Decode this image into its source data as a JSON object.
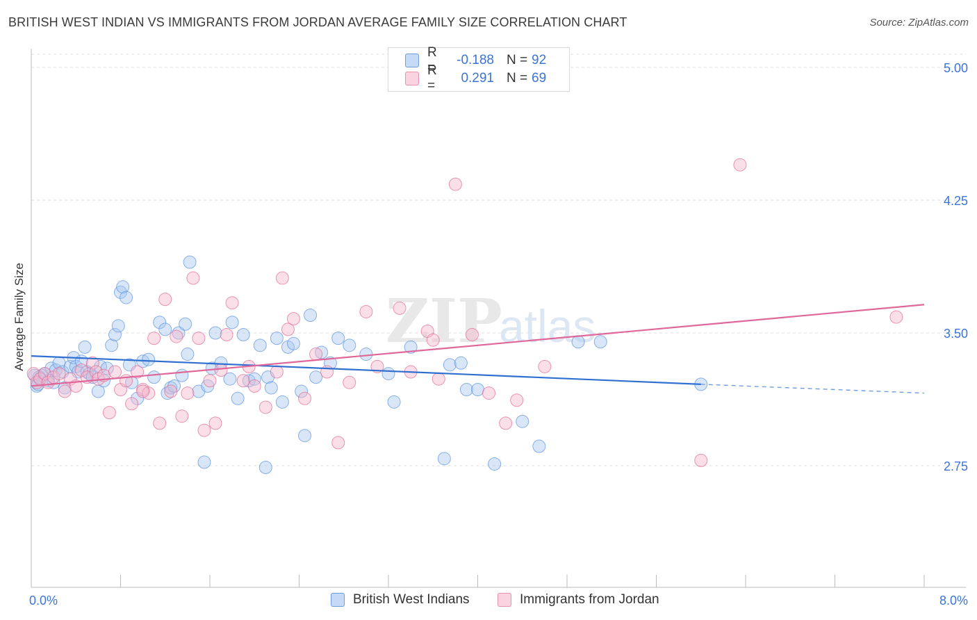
{
  "header": {
    "title": "BRITISH WEST INDIAN VS IMMIGRANTS FROM JORDAN AVERAGE FAMILY SIZE CORRELATION CHART",
    "source": "Source: ZipAtlas.com"
  },
  "legend_stats": [
    {
      "r_label": "R =",
      "r_value": "-0.188",
      "n_label": "N =",
      "n_value": "92",
      "color": "#a9c8f0"
    },
    {
      "r_label": "R =",
      "r_value": "0.291",
      "n_label": "N =",
      "n_value": "69",
      "color": "#f5b8cc"
    }
  ],
  "watermark": {
    "zip": "ZIP",
    "atlas": "atlas"
  },
  "chart_data": {
    "type": "scatter",
    "title": "BRITISH WEST INDIAN VS IMMIGRANTS FROM JORDAN AVERAGE FAMILY SIZE CORRELATION CHART",
    "xlabel": "",
    "ylabel": "Average Family Size",
    "xlim": [
      0.0,
      8.0
    ],
    "ylim": [
      2.0,
      5.0
    ],
    "x_tick_labels": [
      "0.0%",
      "8.0%"
    ],
    "y_ticks": [
      2.75,
      3.5,
      4.25,
      5.0
    ],
    "y_tick_labels": [
      "2.75",
      "3.50",
      "4.25",
      "5.00"
    ],
    "grid": true,
    "legend_position": "bottom",
    "series": [
      {
        "name": "British West Indians",
        "color": "#5b93e0",
        "fill": "#a9c8f0",
        "trend": {
          "x0": 0.0,
          "y0": 3.37,
          "x1": 6.0,
          "y1": 3.21,
          "dash_to_x": 8.0,
          "dash_to_y": 3.16
        },
        "points": [
          [
            0.05,
            3.2
          ],
          [
            0.08,
            3.24
          ],
          [
            0.1,
            3.26
          ],
          [
            0.12,
            3.27
          ],
          [
            0.15,
            3.23
          ],
          [
            0.18,
            3.3
          ],
          [
            0.2,
            3.22
          ],
          [
            0.22,
            3.29
          ],
          [
            0.25,
            3.33
          ],
          [
            0.28,
            3.28
          ],
          [
            0.3,
            3.19
          ],
          [
            0.35,
            3.31
          ],
          [
            0.38,
            3.36
          ],
          [
            0.4,
            3.31
          ],
          [
            0.42,
            3.28
          ],
          [
            0.45,
            3.34
          ],
          [
            0.48,
            3.42
          ],
          [
            0.5,
            3.28
          ],
          [
            0.52,
            3.27
          ],
          [
            0.55,
            3.25
          ],
          [
            0.6,
            3.17
          ],
          [
            0.62,
            3.31
          ],
          [
            0.65,
            3.23
          ],
          [
            0.68,
            3.3
          ],
          [
            0.72,
            3.43
          ],
          [
            0.75,
            3.49
          ],
          [
            0.78,
            3.54
          ],
          [
            0.8,
            3.73
          ],
          [
            0.82,
            3.76
          ],
          [
            0.85,
            3.7
          ],
          [
            0.88,
            3.32
          ],
          [
            0.9,
            3.22
          ],
          [
            0.95,
            3.13
          ],
          [
            1.0,
            3.34
          ],
          [
            1.05,
            3.35
          ],
          [
            1.1,
            3.25
          ],
          [
            1.15,
            3.56
          ],
          [
            1.2,
            3.52
          ],
          [
            1.22,
            3.16
          ],
          [
            1.25,
            3.19
          ],
          [
            1.28,
            3.2
          ],
          [
            1.32,
            3.5
          ],
          [
            1.35,
            3.26
          ],
          [
            1.38,
            3.55
          ],
          [
            1.4,
            3.38
          ],
          [
            1.42,
            3.9
          ],
          [
            1.5,
            3.17
          ],
          [
            1.55,
            2.77
          ],
          [
            1.58,
            3.2
          ],
          [
            1.62,
            3.3
          ],
          [
            1.65,
            3.5
          ],
          [
            1.7,
            3.33
          ],
          [
            1.78,
            3.24
          ],
          [
            1.8,
            3.56
          ],
          [
            1.85,
            3.13
          ],
          [
            1.9,
            3.49
          ],
          [
            1.95,
            3.23
          ],
          [
            2.0,
            3.24
          ],
          [
            2.05,
            3.43
          ],
          [
            2.1,
            2.74
          ],
          [
            2.12,
            3.25
          ],
          [
            2.15,
            3.19
          ],
          [
            2.2,
            3.47
          ],
          [
            2.25,
            3.11
          ],
          [
            2.3,
            3.42
          ],
          [
            2.35,
            3.44
          ],
          [
            2.42,
            3.17
          ],
          [
            2.45,
            2.92
          ],
          [
            2.5,
            3.6
          ],
          [
            2.55,
            3.25
          ],
          [
            2.6,
            3.39
          ],
          [
            2.68,
            3.33
          ],
          [
            2.75,
            3.47
          ],
          [
            2.85,
            3.43
          ],
          [
            3.0,
            3.38
          ],
          [
            3.2,
            3.27
          ],
          [
            3.25,
            3.11
          ],
          [
            3.4,
            3.42
          ],
          [
            3.7,
            2.79
          ],
          [
            3.75,
            3.32
          ],
          [
            3.85,
            3.33
          ],
          [
            3.9,
            3.18
          ],
          [
            4.0,
            3.18
          ],
          [
            4.15,
            2.76
          ],
          [
            4.4,
            3.0
          ],
          [
            4.55,
            2.86
          ],
          [
            4.9,
            3.45
          ],
          [
            5.1,
            3.45
          ],
          [
            6.0,
            3.21
          ],
          [
            0.03,
            3.26
          ],
          [
            0.06,
            3.21
          ],
          [
            0.07,
            3.25
          ]
        ]
      },
      {
        "name": "Immigrants from Jordan",
        "color": "#e06b94",
        "fill": "#f5b8cc",
        "trend": {
          "x0": 0.0,
          "y0": 3.2,
          "x1": 8.0,
          "y1": 3.66
        },
        "points": [
          [
            0.02,
            3.27
          ],
          [
            0.05,
            3.22
          ],
          [
            0.08,
            3.24
          ],
          [
            0.12,
            3.27
          ],
          [
            0.15,
            3.22
          ],
          [
            0.2,
            3.25
          ],
          [
            0.25,
            3.27
          ],
          [
            0.3,
            3.17
          ],
          [
            0.35,
            3.24
          ],
          [
            0.4,
            3.2
          ],
          [
            0.45,
            3.29
          ],
          [
            0.5,
            3.25
          ],
          [
            0.55,
            3.33
          ],
          [
            0.58,
            3.28
          ],
          [
            0.6,
            3.24
          ],
          [
            0.65,
            3.26
          ],
          [
            0.7,
            3.05
          ],
          [
            0.75,
            3.28
          ],
          [
            0.8,
            3.18
          ],
          [
            0.85,
            3.23
          ],
          [
            0.9,
            3.1
          ],
          [
            0.95,
            3.28
          ],
          [
            1.0,
            3.18
          ],
          [
            1.05,
            3.16
          ],
          [
            1.1,
            3.47
          ],
          [
            1.15,
            2.99
          ],
          [
            1.2,
            3.69
          ],
          [
            1.25,
            3.17
          ],
          [
            1.3,
            3.48
          ],
          [
            1.35,
            3.03
          ],
          [
            1.4,
            3.16
          ],
          [
            1.45,
            3.81
          ],
          [
            1.5,
            3.47
          ],
          [
            1.55,
            2.95
          ],
          [
            1.6,
            3.23
          ],
          [
            1.65,
            2.99
          ],
          [
            1.7,
            3.29
          ],
          [
            1.75,
            3.49
          ],
          [
            1.8,
            3.67
          ],
          [
            1.9,
            3.23
          ],
          [
            1.95,
            3.31
          ],
          [
            2.0,
            3.2
          ],
          [
            2.1,
            3.08
          ],
          [
            2.2,
            3.28
          ],
          [
            2.25,
            3.81
          ],
          [
            2.3,
            3.52
          ],
          [
            2.35,
            3.58
          ],
          [
            2.45,
            3.13
          ],
          [
            2.55,
            3.38
          ],
          [
            2.65,
            3.28
          ],
          [
            2.75,
            2.88
          ],
          [
            2.85,
            3.22
          ],
          [
            3.0,
            3.62
          ],
          [
            3.1,
            3.31
          ],
          [
            3.3,
            3.64
          ],
          [
            3.4,
            3.28
          ],
          [
            3.55,
            3.51
          ],
          [
            3.6,
            3.46
          ],
          [
            3.65,
            3.24
          ],
          [
            3.8,
            4.34
          ],
          [
            3.95,
            3.49
          ],
          [
            4.1,
            3.16
          ],
          [
            4.25,
            2.99
          ],
          [
            4.35,
            3.12
          ],
          [
            4.6,
            3.31
          ],
          [
            6.0,
            2.78
          ],
          [
            6.35,
            4.45
          ],
          [
            7.75,
            3.59
          ],
          [
            1.0,
            3.17
          ]
        ]
      }
    ]
  },
  "legend_bottom": {
    "items": [
      {
        "label": "British West Indians"
      },
      {
        "label": "Immigrants from Jordan"
      }
    ]
  }
}
